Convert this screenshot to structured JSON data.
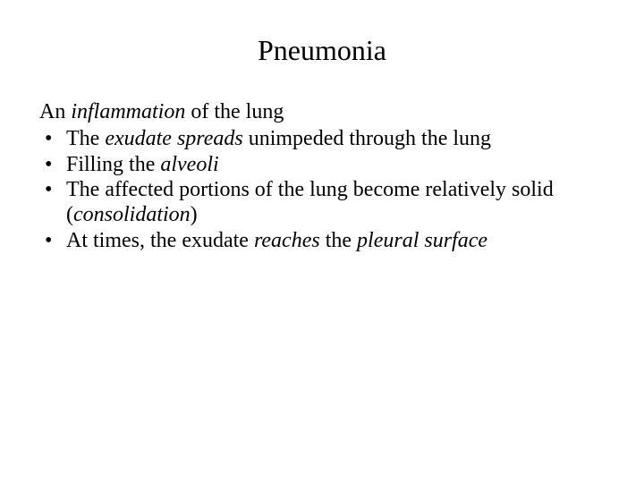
{
  "title": "Pneumonia",
  "lead": {
    "pre": "An ",
    "italic": "inflammation",
    "post": " of the lung"
  },
  "bullets": [
    {
      "segments": [
        {
          "text": "The ",
          "italic": false
        },
        {
          "text": "exudate spreads",
          "italic": true
        },
        {
          "text": " unimpeded through the lung",
          "italic": false
        }
      ]
    },
    {
      "segments": [
        {
          "text": "Filling the ",
          "italic": false
        },
        {
          "text": "alveoli",
          "italic": true
        }
      ]
    },
    {
      "segments": [
        {
          "text": "The affected portions of the lung become relatively solid (",
          "italic": false
        },
        {
          "text": "consolidation",
          "italic": true
        },
        {
          "text": ")",
          "italic": false
        }
      ]
    },
    {
      "segments": [
        {
          "text": "At times, the exudate ",
          "italic": false
        },
        {
          "text": "reaches",
          "italic": true
        },
        {
          "text": " the ",
          "italic": false
        },
        {
          "text": "pleural surface",
          "italic": true
        }
      ]
    }
  ],
  "colors": {
    "background": "#ffffff",
    "text": "#000000"
  },
  "typography": {
    "title_fontsize": 32,
    "body_fontsize": 24,
    "font_family": "Times New Roman"
  }
}
